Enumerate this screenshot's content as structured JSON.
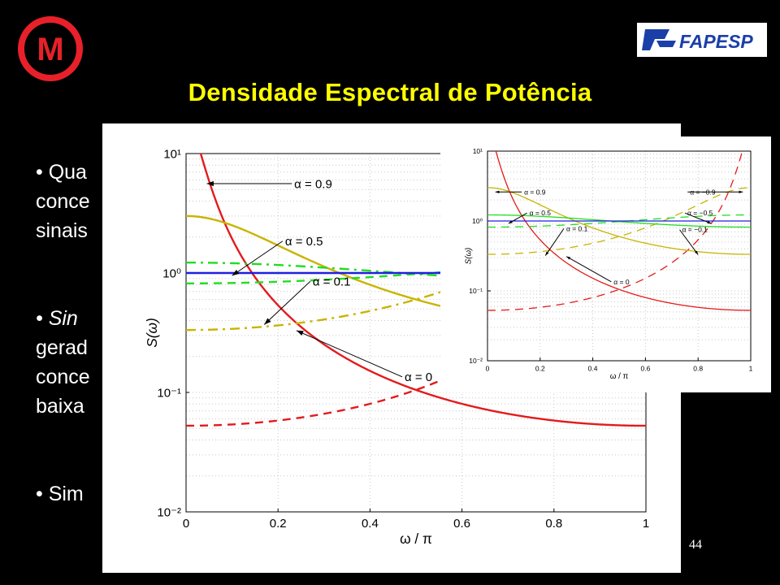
{
  "slide": {
    "title": "Densidade Espectral de Potência",
    "page_number": "44",
    "bullets": [
      {
        "lines": [
          "• Qua",
          "conce",
          "sinais"
        ]
      },
      {
        "lines": [
          "• Sin",
          "gerad",
          "conce",
          "baixa"
        ]
      },
      {
        "lines": [
          "• Sim"
        ]
      }
    ]
  },
  "logos": {
    "fapesp_text": "FAPESP",
    "m_letter": "M",
    "m_color": "#e8202a",
    "fapesp_color": "#1b3fa8"
  },
  "colors": {
    "red": "#e41a1c",
    "yellow": "#c8b400",
    "green": "#22dd22",
    "blue": "#1f1fe0",
    "title": "#ffff00"
  },
  "chart_data": [
    {
      "type": "line",
      "title": "",
      "xlabel": "ω / π",
      "ylabel": "S(ω)",
      "xlim": [
        0,
        1
      ],
      "ylim": [
        0.01,
        10
      ],
      "yscale": "log",
      "x_ticks": [
        "0",
        "0.2",
        "0.4",
        "0.6",
        "0.8",
        "1"
      ],
      "y_ticks": [
        "10⁻²",
        "10⁻¹",
        "10⁰",
        "10¹"
      ],
      "grid": true,
      "annotations": [
        "α = 0.9",
        "α = 0.5",
        "α = 0.1",
        "α = 0"
      ],
      "series": [
        {
          "alpha": 0.9,
          "color": "red",
          "style": "solid"
        },
        {
          "alpha": -0.9,
          "color": "red",
          "style": "dashed"
        },
        {
          "alpha": 0.5,
          "color": "yellow",
          "style": "solid"
        },
        {
          "alpha": -0.5,
          "color": "yellow",
          "style": "dashdot"
        },
        {
          "alpha": 0.1,
          "color": "green",
          "style": "dashdot"
        },
        {
          "alpha": -0.1,
          "color": "green",
          "style": "dashed"
        },
        {
          "alpha": 0,
          "color": "blue",
          "style": "solid"
        }
      ]
    },
    {
      "type": "line",
      "title": "",
      "xlabel": "ω / π",
      "ylabel": "S(ω)",
      "xlim": [
        0,
        1
      ],
      "ylim": [
        0.01,
        10
      ],
      "yscale": "log",
      "x_ticks": [
        "0",
        "0.2",
        "0.4",
        "0.6",
        "0.8",
        "1"
      ],
      "y_ticks": [
        "10⁻²",
        "10⁻¹",
        "10⁰",
        "10¹"
      ],
      "grid": true,
      "annotations": [
        "α = 0.9",
        "α = 0.5",
        "α = 0.1",
        "α = 0",
        "α = −0.9",
        "α = −0.5",
        "α = −0.1"
      ],
      "series": [
        {
          "alpha": 0.9,
          "color": "red",
          "style": "solid"
        },
        {
          "alpha": -0.9,
          "color": "red",
          "style": "dashed"
        },
        {
          "alpha": 0.5,
          "color": "yellow",
          "style": "solid"
        },
        {
          "alpha": -0.5,
          "color": "yellow",
          "style": "dashed"
        },
        {
          "alpha": 0.1,
          "color": "green",
          "style": "solid"
        },
        {
          "alpha": -0.1,
          "color": "green",
          "style": "dashed"
        },
        {
          "alpha": 0,
          "color": "blue",
          "style": "solid"
        }
      ]
    }
  ]
}
